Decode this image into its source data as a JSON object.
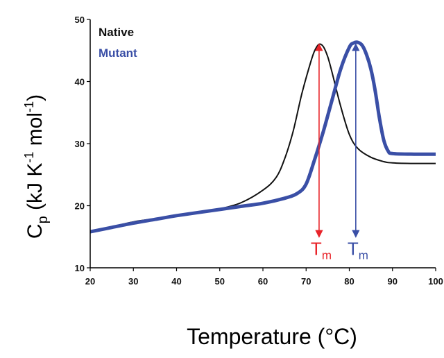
{
  "chart_data": {
    "type": "line",
    "xlabel": "Temperature (°C)",
    "ylabel": {
      "base": "C",
      "sub": "p",
      "unit": "(kJ K",
      "exp1": "-1",
      "mid": " mol",
      "exp2": "-1",
      "close": ")"
    },
    "xlim": [
      20,
      100
    ],
    "ylim": [
      10,
      50
    ],
    "x_ticks": [
      20,
      30,
      40,
      50,
      60,
      70,
      80,
      90,
      100
    ],
    "y_ticks": [
      10,
      20,
      30,
      40,
      50
    ],
    "grid": false,
    "legend_position": "top-left",
    "series": [
      {
        "name": "Native",
        "color": "#111111",
        "points": [
          [
            20,
            15.8
          ],
          [
            25,
            16.6
          ],
          [
            30,
            17.4
          ],
          [
            35,
            17.9
          ],
          [
            40,
            18.4
          ],
          [
            45,
            18.9
          ],
          [
            50,
            19.5
          ],
          [
            55,
            20.5
          ],
          [
            60,
            22.5
          ],
          [
            63,
            24.5
          ],
          [
            65,
            27.5
          ],
          [
            67,
            32
          ],
          [
            69,
            38
          ],
          [
            71,
            43
          ],
          [
            72,
            45
          ],
          [
            73,
            46
          ],
          [
            74,
            45.6
          ],
          [
            75,
            44
          ],
          [
            76,
            41.5
          ],
          [
            78,
            36
          ],
          [
            80,
            31.5
          ],
          [
            82,
            29.2
          ],
          [
            85,
            27.8
          ],
          [
            88,
            27.1
          ],
          [
            90,
            26.9
          ],
          [
            95,
            26.8
          ],
          [
            100,
            26.8
          ]
        ]
      },
      {
        "name": "Mutant",
        "color": "#3a4fa6",
        "points": [
          [
            20,
            15.8
          ],
          [
            25,
            16.5
          ],
          [
            30,
            17.2
          ],
          [
            35,
            17.8
          ],
          [
            40,
            18.4
          ],
          [
            45,
            18.9
          ],
          [
            50,
            19.4
          ],
          [
            55,
            19.9
          ],
          [
            60,
            20.4
          ],
          [
            65,
            21.2
          ],
          [
            68,
            22
          ],
          [
            70,
            23.5
          ],
          [
            72,
            27.5
          ],
          [
            74,
            32
          ],
          [
            76,
            37
          ],
          [
            78,
            42
          ],
          [
            80,
            45.5
          ],
          [
            81,
            46.2
          ],
          [
            82,
            46.3
          ],
          [
            83,
            45.8
          ],
          [
            84,
            44.3
          ],
          [
            85,
            42
          ],
          [
            86,
            38.5
          ],
          [
            87,
            34
          ],
          [
            88,
            30.5
          ],
          [
            89,
            28.8
          ],
          [
            90,
            28.4
          ],
          [
            95,
            28.3
          ],
          [
            100,
            28.3
          ]
        ]
      }
    ],
    "annotations": [
      {
        "label": "T",
        "sub": "m",
        "x": 73,
        "y_top": 46,
        "y_bottom": 15,
        "color": "#e8242a"
      },
      {
        "label": "T",
        "sub": "m",
        "x": 81.5,
        "y_top": 46,
        "y_bottom": 15,
        "color": "#3a4fa6"
      }
    ]
  }
}
